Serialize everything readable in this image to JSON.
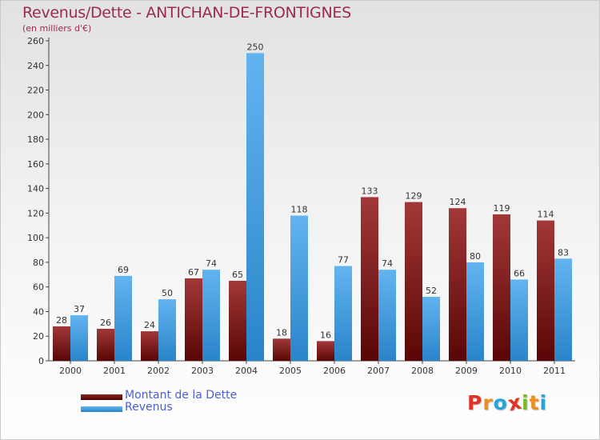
{
  "header": {
    "title": "Revenus/Dette - ANTICHAN-DE-FRONTIGNES",
    "subtitle": "(en milliers d'€)"
  },
  "legend": {
    "items": [
      {
        "label": "Montant de la Dette",
        "color": "#6b0e0e"
      },
      {
        "label": "Revenus",
        "color": "#3e9be4"
      }
    ]
  },
  "logo": {
    "text": "Proxiti",
    "letters": [
      {
        "char": "P",
        "color": "#e2332b"
      },
      {
        "char": "r",
        "color": "#f18d1e"
      },
      {
        "char": "o",
        "color": "#27a3d8"
      },
      {
        "char": "x",
        "color": "#e2332b"
      },
      {
        "char": "i",
        "color": "#7ab929"
      },
      {
        "char": "t",
        "color": "#f18d1e"
      },
      {
        "char": "i",
        "color": "#27a3d8"
      }
    ]
  },
  "chart_data": {
    "type": "bar",
    "categories": [
      "2000",
      "2001",
      "2002",
      "2003",
      "2004",
      "2005",
      "2006",
      "2007",
      "2008",
      "2009",
      "2010",
      "2011"
    ],
    "series": [
      {
        "name": "Montant de la Dette",
        "color": "#6b0e0e",
        "values": [
          28,
          26,
          24,
          67,
          65,
          18,
          16,
          133,
          129,
          124,
          119,
          114
        ]
      },
      {
        "name": "Revenus",
        "color": "#3e9be4",
        "values": [
          37,
          69,
          50,
          74,
          250,
          118,
          77,
          74,
          52,
          80,
          66,
          83
        ]
      }
    ],
    "title": "Revenus/Dette - ANTICHAN-DE-FRONTIGNES",
    "subtitle": "(en milliers d'€)",
    "ylim": [
      0,
      260
    ],
    "yticks": [
      0,
      20,
      40,
      60,
      80,
      100,
      120,
      140,
      160,
      180,
      200,
      220,
      240,
      260
    ],
    "grid": false,
    "data_labels": true,
    "legend_position": "bottom-left"
  }
}
